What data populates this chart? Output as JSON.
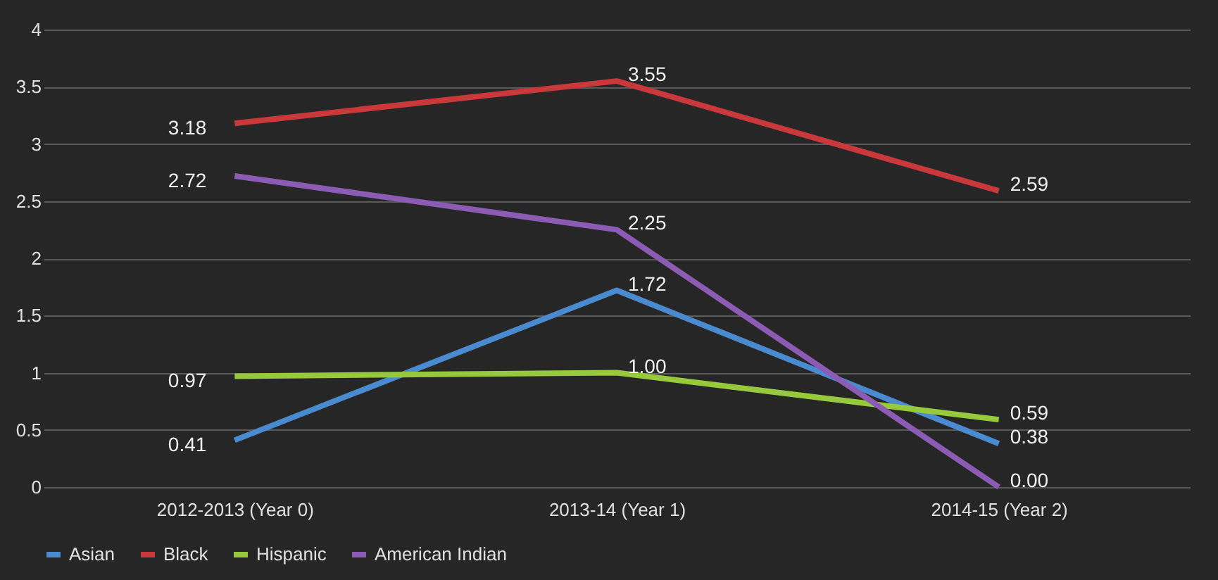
{
  "chart_data": {
    "type": "line",
    "categories": [
      "2012-2013 (Year 0)",
      "2013-14 (Year 1)",
      "2014-15 (Year 2)"
    ],
    "series": [
      {
        "name": "Asian",
        "color": "#4a8bd0",
        "values": [
          0.41,
          1.72,
          0.38
        ],
        "value_labels": [
          "0.41",
          "1.72",
          "0.38"
        ]
      },
      {
        "name": "Black",
        "color": "#c9393b",
        "values": [
          3.18,
          3.55,
          2.59
        ],
        "value_labels": [
          "3.18",
          "3.55",
          "2.59"
        ]
      },
      {
        "name": "Hispanic",
        "color": "#97c93d",
        "values": [
          0.97,
          1.0,
          0.59
        ],
        "value_labels": [
          "0.97",
          "1.00",
          "0.59"
        ]
      },
      {
        "name": "American Indian",
        "color": "#8c5bb3",
        "values": [
          2.72,
          2.25,
          0.0
        ],
        "value_labels": [
          "2.72",
          "2.25",
          "0.00"
        ]
      }
    ],
    "ylim": [
      0,
      4
    ],
    "yticks": [
      0,
      0.5,
      1,
      1.5,
      2,
      2.5,
      3,
      3.5,
      4
    ],
    "grid": "y",
    "legend": "bottom",
    "marker": "none",
    "line_style": "solid"
  }
}
